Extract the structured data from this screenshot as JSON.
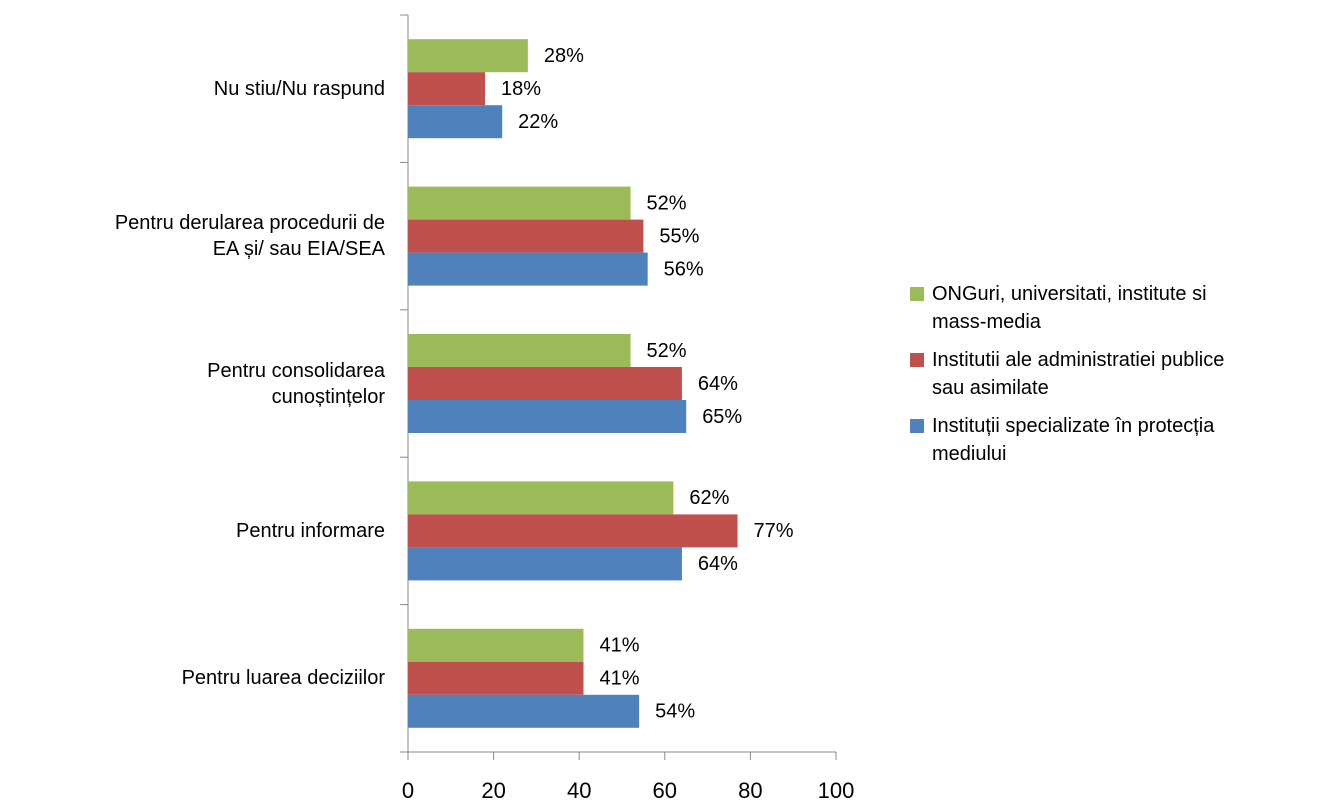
{
  "chart_data": {
    "type": "hbar",
    "categories": [
      "Nu stiu/Nu raspund",
      "Pentru derularea procedurii de EA și/ sau EIA/SEA",
      "Pentru consolidarea cunoștințelor",
      "Pentru informare",
      "Pentru luarea deciziilor"
    ],
    "series": [
      {
        "name": "ONGuri, universitati, institute si mass-media",
        "color": "#9bbb59",
        "values": [
          28,
          52,
          52,
          62,
          41
        ],
        "value_labels": [
          "28%",
          "52%",
          "52%",
          "62%",
          "41%"
        ]
      },
      {
        "name": "Institutii ale administratiei publice sau asimilate",
        "color": "#c0504d",
        "values": [
          18,
          55,
          64,
          77,
          41
        ],
        "value_labels": [
          "18%",
          "55%",
          "64%",
          "77%",
          "41%"
        ]
      },
      {
        "name": "Instituții specializate în protecția mediului",
        "color": "#4f81bd",
        "values": [
          22,
          56,
          65,
          64,
          54
        ],
        "value_labels": [
          "22%",
          "56%",
          "65%",
          "64%",
          "54%"
        ]
      }
    ],
    "xlim": [
      0,
      100
    ],
    "xticks": [
      0,
      20,
      40,
      60,
      80,
      100
    ],
    "legend": "right"
  }
}
